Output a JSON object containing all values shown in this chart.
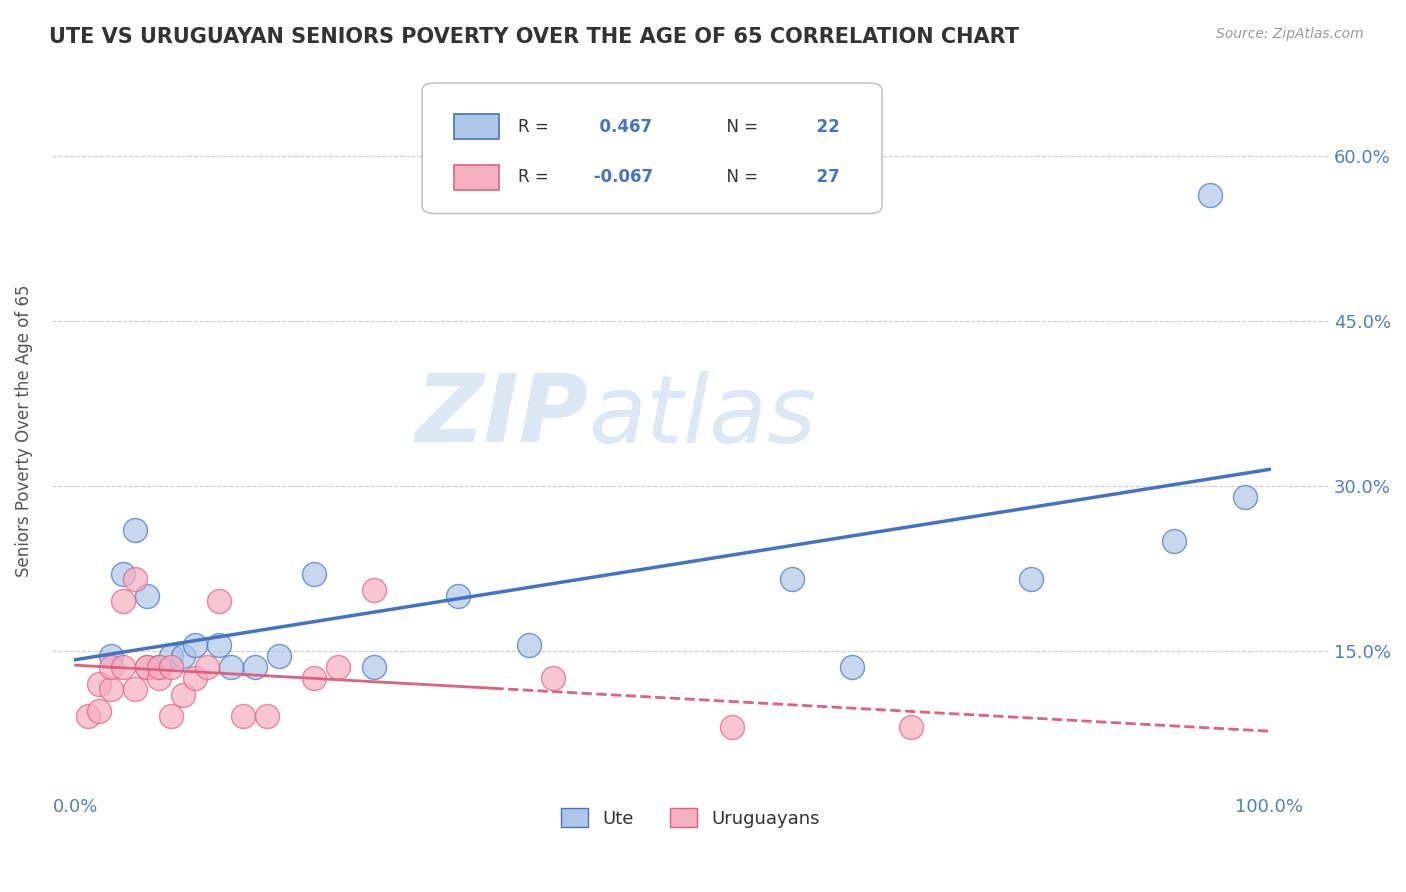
{
  "title": "UTE VS URUGUAYAN SENIORS POVERTY OVER THE AGE OF 65 CORRELATION CHART",
  "source": "Source: ZipAtlas.com",
  "ylabel_label": "Seniors Poverty Over the Age of 65",
  "ute_R": 0.467,
  "ute_N": 22,
  "uruguayan_R": -0.067,
  "uruguayan_N": 27,
  "x_ticks": [
    0.0,
    0.2,
    0.4,
    0.6,
    0.8,
    1.0
  ],
  "x_tick_labels": [
    "0.0%",
    "",
    "",
    "",
    "",
    "100.0%"
  ],
  "y_ticks": [
    0.15,
    0.3,
    0.45,
    0.6
  ],
  "y_tick_labels_right": [
    "15.0%",
    "30.0%",
    "45.0%",
    "60.0%"
  ],
  "xlim": [
    -0.02,
    1.05
  ],
  "ylim": [
    0.02,
    0.68
  ],
  "ute_scatter_x": [
    0.03,
    0.04,
    0.05,
    0.06,
    0.07,
    0.08,
    0.09,
    0.1,
    0.12,
    0.13,
    0.15,
    0.17,
    0.2,
    0.25,
    0.32,
    0.6,
    0.65,
    0.8,
    0.92,
    0.95,
    0.98,
    0.38
  ],
  "ute_scatter_y": [
    0.145,
    0.22,
    0.26,
    0.2,
    0.135,
    0.145,
    0.145,
    0.155,
    0.155,
    0.135,
    0.135,
    0.145,
    0.22,
    0.135,
    0.2,
    0.215,
    0.135,
    0.215,
    0.25,
    0.565,
    0.29,
    0.155
  ],
  "uruguayan_scatter_x": [
    0.01,
    0.02,
    0.02,
    0.03,
    0.03,
    0.04,
    0.04,
    0.05,
    0.05,
    0.06,
    0.06,
    0.07,
    0.07,
    0.08,
    0.08,
    0.09,
    0.1,
    0.11,
    0.12,
    0.14,
    0.16,
    0.2,
    0.22,
    0.25,
    0.4,
    0.55,
    0.7
  ],
  "uruguayan_scatter_y": [
    0.09,
    0.095,
    0.12,
    0.115,
    0.135,
    0.135,
    0.195,
    0.115,
    0.215,
    0.135,
    0.135,
    0.125,
    0.135,
    0.135,
    0.09,
    0.11,
    0.125,
    0.135,
    0.195,
    0.09,
    0.09,
    0.125,
    0.135,
    0.205,
    0.125,
    0.08,
    0.08
  ],
  "ute_color": "#aec6e8",
  "uruguayan_color": "#f4afc0",
  "ute_line_color": "#4472c4",
  "uruguayan_line_color": "#e06080",
  "background_color": "#ffffff",
  "grid_color": "#cccccc",
  "watermark_color": "#dce8f5",
  "title_color": "#333333",
  "tick_color": "#5080c0",
  "ylabel_color": "#555555"
}
